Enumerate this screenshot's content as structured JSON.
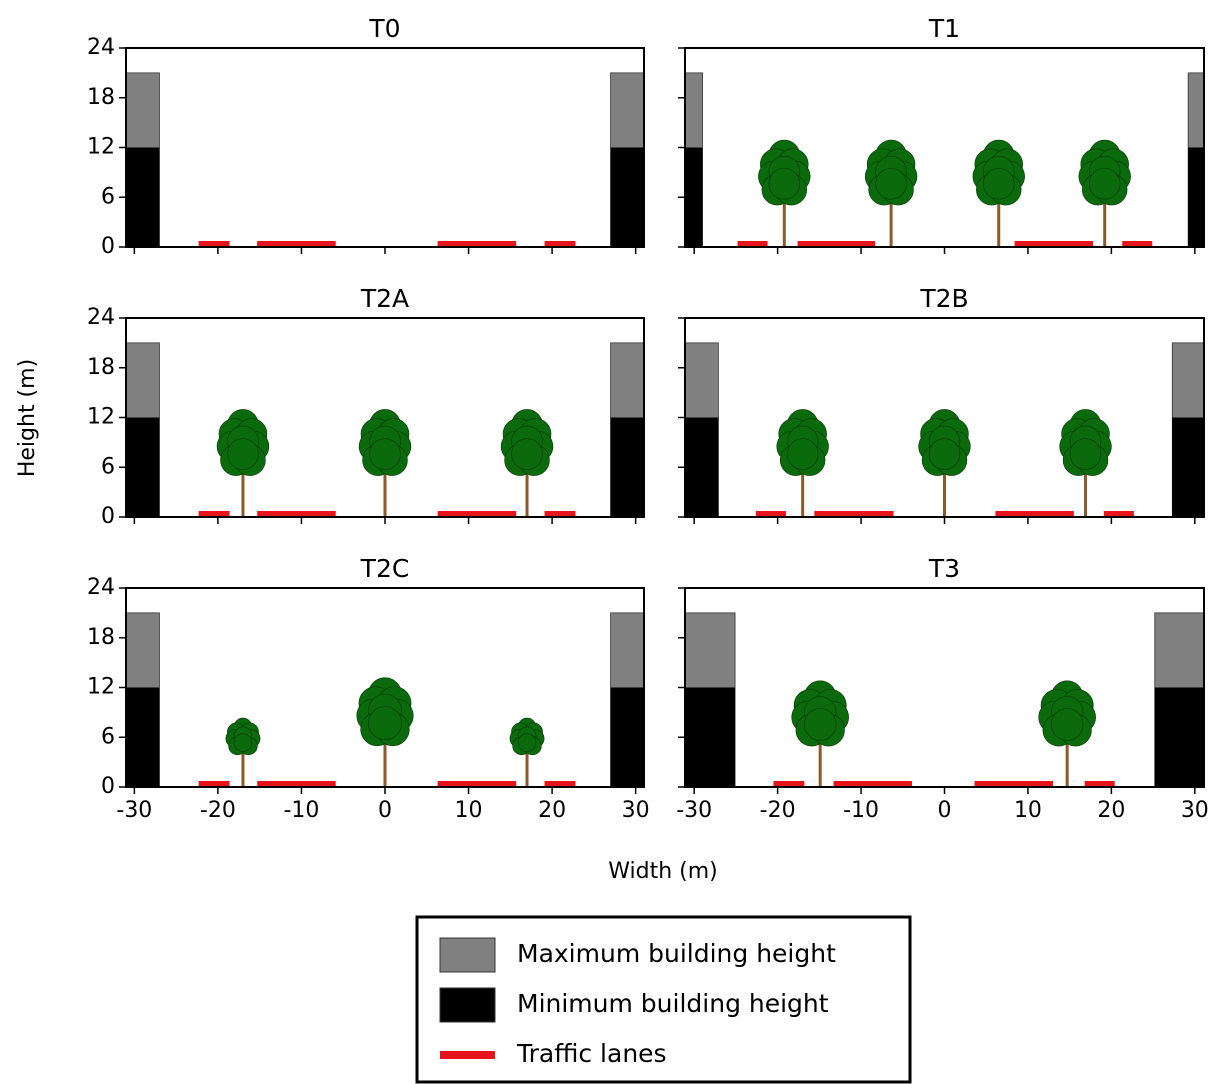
{
  "axis_labels": {
    "x": "Width (m)",
    "y": "Height (m)"
  },
  "legend": [
    {
      "name": "Maximum building height",
      "color": "#808080"
    },
    {
      "name": "Minimum building height",
      "color": "#000000"
    },
    {
      "name": "Traffic lanes",
      "color": "#e8141c"
    }
  ],
  "tree_colors": {
    "crown": "#0b6a0b",
    "trunk": "#8b5a2b"
  },
  "chart_data": [
    {
      "type": "street-section",
      "title": "T0",
      "xlim": [
        -31,
        31
      ],
      "ylim": [
        0,
        24
      ],
      "xticks": [
        -30,
        -20,
        -10,
        0,
        10,
        20,
        30
      ],
      "yticks": [
        0,
        6,
        12,
        18,
        24
      ],
      "show_xtick_labels": false,
      "show_ytick_labels": true,
      "buildings": [
        {
          "x": [
            -31,
            -27
          ],
          "min": 12,
          "max": 21
        },
        {
          "x": [
            27,
            31
          ],
          "min": 12,
          "max": 21
        }
      ],
      "lanes": [
        [
          -22.3,
          -18.6
        ],
        [
          -15.3,
          -5.9
        ],
        [
          6.3,
          15.7
        ],
        [
          19.1,
          22.8
        ]
      ],
      "trees": []
    },
    {
      "type": "street-section",
      "title": "T1",
      "xlim": [
        -31.1,
        31.1
      ],
      "ylim": [
        0,
        24
      ],
      "xticks": [
        -30,
        -20,
        -10,
        0,
        10,
        20,
        30
      ],
      "yticks": [
        0,
        6,
        12,
        18,
        24
      ],
      "show_xtick_labels": false,
      "show_ytick_labels": false,
      "buildings": [
        {
          "x": [
            -31.1,
            -29
          ],
          "min": 12,
          "max": 21
        },
        {
          "x": [
            29.2,
            31.1
          ],
          "min": 12,
          "max": 21
        }
      ],
      "lanes": [
        [
          -24.8,
          -21.2
        ],
        [
          -17.6,
          -8.3
        ],
        [
          8.4,
          17.8
        ],
        [
          21.3,
          24.9
        ]
      ],
      "trees": [
        {
          "x": -19.2,
          "crown_bottom": 4,
          "crown_top": 13.6,
          "crown_width": 6.6
        },
        {
          "x": -6.4,
          "crown_bottom": 4,
          "crown_top": 13.6,
          "crown_width": 6.6
        },
        {
          "x": 6.5,
          "crown_bottom": 4,
          "crown_top": 13.6,
          "crown_width": 6.6
        },
        {
          "x": 19.2,
          "crown_bottom": 4,
          "crown_top": 13.6,
          "crown_width": 6.6
        }
      ]
    },
    {
      "type": "street-section",
      "title": "T2A",
      "xlim": [
        -31,
        31
      ],
      "ylim": [
        0,
        24
      ],
      "xticks": [
        -30,
        -20,
        -10,
        0,
        10,
        20,
        30
      ],
      "yticks": [
        0,
        6,
        12,
        18,
        24
      ],
      "show_xtick_labels": false,
      "show_ytick_labels": true,
      "buildings": [
        {
          "x": [
            -31,
            -27
          ],
          "min": 12,
          "max": 21
        },
        {
          "x": [
            27,
            31
          ],
          "min": 12,
          "max": 21
        }
      ],
      "lanes": [
        [
          -22.3,
          -18.6
        ],
        [
          -15.3,
          -5.9
        ],
        [
          6.3,
          15.7
        ],
        [
          19.1,
          22.8
        ]
      ],
      "trees": [
        {
          "x": -17,
          "crown_bottom": 3.9,
          "crown_top": 13.7,
          "crown_width": 6.6
        },
        {
          "x": 0,
          "crown_bottom": 3.9,
          "crown_top": 13.7,
          "crown_width": 6.6
        },
        {
          "x": 17,
          "crown_bottom": 3.9,
          "crown_top": 13.7,
          "crown_width": 6.6
        }
      ]
    },
    {
      "type": "street-section",
      "title": "T2B",
      "xlim": [
        -31.1,
        31.1
      ],
      "ylim": [
        0,
        24
      ],
      "xticks": [
        -30,
        -20,
        -10,
        0,
        10,
        20,
        30
      ],
      "yticks": [
        0,
        6,
        12,
        18,
        24
      ],
      "show_xtick_labels": false,
      "show_ytick_labels": false,
      "buildings": [
        {
          "x": [
            -31.1,
            -27.1
          ],
          "min": 12,
          "max": 21
        },
        {
          "x": [
            27.3,
            31.1
          ],
          "min": 12,
          "max": 21
        }
      ],
      "lanes": [
        [
          -22.6,
          -19
        ],
        [
          -15.6,
          -6.1
        ],
        [
          6.1,
          15.5
        ],
        [
          19.1,
          22.7
        ]
      ],
      "trees": [
        {
          "x": -17,
          "crown_bottom": 3.9,
          "crown_top": 13.7,
          "crown_width": 6.6
        },
        {
          "x": 0,
          "crown_bottom": 3.9,
          "crown_top": 13.7,
          "crown_width": 6.6
        },
        {
          "x": 16.9,
          "crown_bottom": 3.9,
          "crown_top": 13.7,
          "crown_width": 6.6
        }
      ]
    },
    {
      "type": "street-section",
      "title": "T2C",
      "xlim": [
        -31,
        31
      ],
      "ylim": [
        0,
        24
      ],
      "xticks": [
        -30,
        -20,
        -10,
        0,
        10,
        20,
        30
      ],
      "yticks": [
        0,
        6,
        12,
        18,
        24
      ],
      "show_xtick_labels": true,
      "show_ytick_labels": true,
      "buildings": [
        {
          "x": [
            -31,
            -27
          ],
          "min": 12,
          "max": 21
        },
        {
          "x": [
            27,
            31
          ],
          "min": 12,
          "max": 21
        }
      ],
      "lanes": [
        [
          -22.3,
          -18.6
        ],
        [
          -15.3,
          -5.9
        ],
        [
          6.3,
          15.7
        ],
        [
          19.1,
          22.8
        ]
      ],
      "trees": [
        {
          "x": -17,
          "crown_bottom": 3.3,
          "crown_top": 8.7,
          "crown_width": 4.4
        },
        {
          "x": 0,
          "crown_bottom": 3.9,
          "crown_top": 13.9,
          "crown_width": 7.2
        },
        {
          "x": 17,
          "crown_bottom": 3.3,
          "crown_top": 8.7,
          "crown_width": 4.4
        }
      ]
    },
    {
      "type": "street-section",
      "title": "T3",
      "xlim": [
        -31.1,
        31.1
      ],
      "ylim": [
        0,
        24
      ],
      "xticks": [
        -30,
        -20,
        -10,
        0,
        10,
        20,
        30
      ],
      "yticks": [
        0,
        6,
        12,
        18,
        24
      ],
      "show_xtick_labels": true,
      "show_ytick_labels": false,
      "buildings": [
        {
          "x": [
            -31.1,
            -25.1
          ],
          "min": 12,
          "max": 21
        },
        {
          "x": [
            25.2,
            31.1
          ],
          "min": 12,
          "max": 21
        }
      ],
      "lanes": [
        [
          -20.5,
          -16.8
        ],
        [
          -13.3,
          -3.9
        ],
        [
          3.6,
          13
        ],
        [
          16.8,
          20.4
        ]
      ],
      "trees": [
        {
          "x": -14.9,
          "crown_bottom": 3.9,
          "crown_top": 13.5,
          "crown_width": 7.3
        },
        {
          "x": 14.7,
          "crown_bottom": 3.9,
          "crown_top": 13.5,
          "crown_width": 7.3
        }
      ]
    }
  ]
}
